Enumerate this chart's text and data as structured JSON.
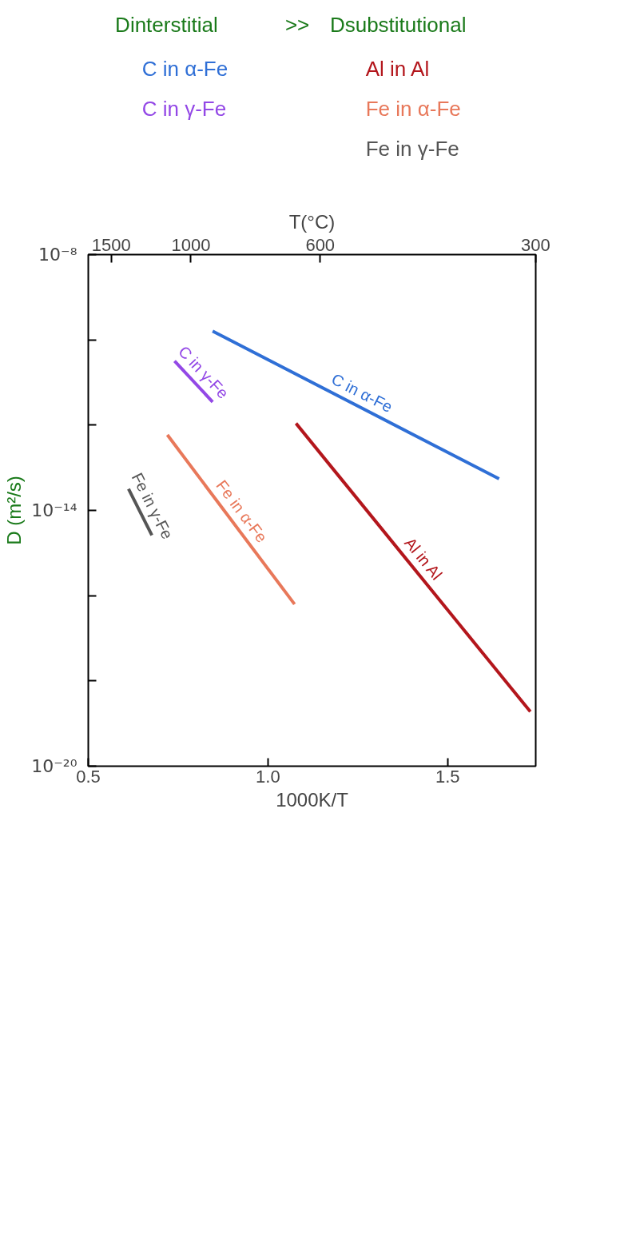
{
  "chart_data": {
    "type": "line",
    "xlabel": "1000K/T",
    "x2label": "T(°C)",
    "ylabel": "D (m²/s)",
    "xlim": [
      0.5,
      1.745
    ],
    "xticks": [
      {
        "value": 0.5,
        "label": "0.5"
      },
      {
        "value": 1.0,
        "label": "1.0"
      },
      {
        "value": 1.5,
        "label": "1.5"
      }
    ],
    "log": "y",
    "ylim": [
      1e-20,
      1e-08
    ],
    "yticks": [
      {
        "value": 1e-08,
        "label": "10⁻⁸"
      },
      {
        "value": 1e-10,
        "label": null
      },
      {
        "value": 1e-12,
        "label": null
      },
      {
        "value": 1e-14,
        "label": "10⁻¹⁴"
      },
      {
        "value": 1e-16,
        "label": null
      },
      {
        "value": 1e-18,
        "label": null
      },
      {
        "value": 1e-20,
        "label": "10⁻²⁰"
      }
    ],
    "grid": false,
    "legend": "top",
    "annotations": [
      "Dinterstitial",
      ">>",
      "Dsubstitutional",
      "1500",
      "1000",
      "600",
      "300"
    ],
    "series": [
      {
        "name": "C in α-Fe",
        "color": "#2f6fd6",
        "x": [
          0.846,
          1.643
        ],
        "values": [
          1.6e-10,
          5.5e-14
        ]
      },
      {
        "name": "C in γ-Fe",
        "color": "#9348e6",
        "x": [
          0.74,
          0.846
        ],
        "values": [
          3.2e-11,
          3.5e-12
        ]
      },
      {
        "name": "Al in Al",
        "color": "#b3161c",
        "x": [
          1.078,
          1.73
        ],
        "values": [
          1.1e-12,
          1.9e-19
        ]
      },
      {
        "name": "Fe in α-Fe",
        "color": "#e8785a",
        "x": [
          0.72,
          1.074
        ],
        "values": [
          5.9e-13,
          6.3e-17
        ]
      },
      {
        "name": "Fe in γ-Fe",
        "color": "#555555",
        "x": [
          0.612,
          0.677
        ],
        "values": [
          3.2e-14,
          2.6e-15
        ]
      }
    ]
  }
}
